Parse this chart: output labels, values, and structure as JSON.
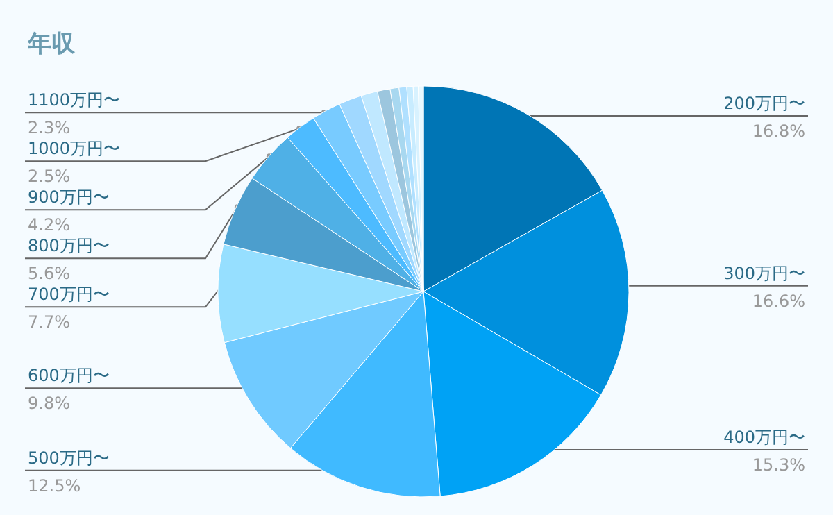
{
  "chart_data": {
    "type": "pie",
    "title": "年収",
    "categories": [
      "200万円〜",
      "300万円〜",
      "400万円〜",
      "500万円〜",
      "600万円〜",
      "700万円〜",
      "800万円〜",
      "900万円〜",
      "1000万円〜",
      "1100万円〜",
      null,
      null,
      null,
      null,
      null,
      null,
      null,
      null
    ],
    "values": [
      16.8,
      16.6,
      15.3,
      12.5,
      9.8,
      7.7,
      5.6,
      4.2,
      2.5,
      2.3,
      1.8,
      1.3,
      1.0,
      0.7,
      0.6,
      0.5,
      0.4,
      0.4
    ],
    "value_labels": [
      "16.8%",
      "16.6%",
      "15.3%",
      "12.5%",
      "9.8%",
      "7.7%",
      "5.6%",
      "4.2%",
      "2.5%",
      "2.3%",
      null,
      null,
      null,
      null,
      null,
      null,
      null,
      null
    ],
    "colors": [
      "#0075b5",
      "#0090dd",
      "#00a2f5",
      "#40baff",
      "#70caff",
      "#96dfff",
      "#4c9ecd",
      "#4fb0e6",
      "#4dbbff",
      "#78cbff",
      "#a0d8ff",
      "#c0e8ff",
      "#9cc6de",
      "#a8d8f0",
      "#b0e0ff",
      "#c8ecff",
      "#d8f2ff",
      "#e8f8ff"
    ],
    "legend": false
  }
}
